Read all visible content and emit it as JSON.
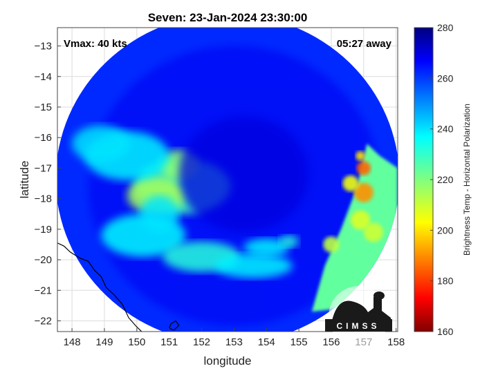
{
  "chart_data": {
    "type": "heatmap",
    "title": "Seven: 23-Jan-2024 23:30:00",
    "xlabel": "longitude",
    "ylabel": "latitude",
    "xlim": [
      147.55,
      158.05
    ],
    "ylim": [
      -22.35,
      -12.4
    ],
    "xticks": [
      148,
      149,
      150,
      151,
      152,
      153,
      154,
      155,
      156,
      157,
      158
    ],
    "yticks": [
      -13,
      -14,
      -15,
      -16,
      -17,
      -18,
      -19,
      -20,
      -21,
      -22
    ],
    "grid": true,
    "annotations": {
      "top_left": "Vmax: 40 kts",
      "top_right": "05:27 away"
    },
    "colorbar": {
      "label": "Brightness Temp - Horizontal Polarization",
      "range": [
        160,
        280
      ],
      "ticks": [
        160,
        180,
        200,
        220,
        240,
        260,
        280
      ],
      "colormap": "jet"
    },
    "swath": {
      "center_lon": 152.8,
      "center_lat": -17.35,
      "radius_lon": 5.3,
      "radius_lat": 5.4
    },
    "coastline": [
      [
        147.55,
        -19.45
      ],
      [
        147.75,
        -19.55
      ],
      [
        147.95,
        -19.75
      ],
      [
        148.25,
        -19.95
      ],
      [
        148.5,
        -20.05
      ],
      [
        148.7,
        -20.35
      ],
      [
        148.9,
        -20.55
      ],
      [
        149.05,
        -20.9
      ],
      [
        149.3,
        -21.15
      ],
      [
        149.55,
        -21.45
      ],
      [
        149.75,
        -21.9
      ],
      [
        150.0,
        -22.2
      ],
      [
        150.15,
        -22.35
      ]
    ],
    "islands": [
      [
        [
          151.05,
          -22.1
        ],
        [
          151.2,
          -22.0
        ],
        [
          151.3,
          -22.15
        ],
        [
          151.15,
          -22.3
        ],
        [
          151.0,
          -22.25
        ],
        [
          151.05,
          -22.1
        ]
      ]
    ],
    "warm_features": [
      {
        "lon": 151.4,
        "lat": -17.6,
        "rlon": 1.5,
        "rlat": 0.9,
        "temp": 228
      },
      {
        "lon": 150.6,
        "lat": -17.9,
        "rlon": 0.9,
        "rlat": 0.6,
        "temp": 215
      },
      {
        "lon": 151.3,
        "lat": -16.9,
        "rlon": 0.6,
        "rlat": 0.5,
        "temp": 218
      },
      {
        "lon": 149.7,
        "lat": -16.6,
        "rlon": 1.3,
        "rlat": 0.8,
        "temp": 238
      },
      {
        "lon": 148.9,
        "lat": -16.2,
        "rlon": 0.9,
        "rlat": 0.6,
        "temp": 240
      },
      {
        "lon": 150.2,
        "lat": -19.2,
        "rlon": 1.3,
        "rlat": 0.7,
        "temp": 237
      },
      {
        "lon": 152.0,
        "lat": -19.9,
        "rlon": 1.2,
        "rlat": 0.5,
        "temp": 232
      },
      {
        "lon": 153.6,
        "lat": -20.2,
        "rlon": 1.2,
        "rlat": 0.4,
        "temp": 238
      },
      {
        "lon": 154.0,
        "lat": -19.6,
        "rlon": 0.7,
        "rlat": 0.3,
        "temp": 238
      },
      {
        "lon": 154.7,
        "lat": -19.4,
        "rlon": 0.3,
        "rlat": 0.2,
        "temp": 232
      },
      {
        "lon": 150.7,
        "lat": -18.5,
        "rlon": 0.6,
        "rlat": 0.6,
        "temp": 240
      }
    ],
    "land_strip": {
      "polygon": [
        [
          157.1,
          -16.2
        ],
        [
          157.5,
          -16.6
        ],
        [
          158.05,
          -17.0
        ],
        [
          158.05,
          -20.5
        ],
        [
          157.5,
          -21.0
        ],
        [
          156.8,
          -21.4
        ],
        [
          156.2,
          -21.6
        ],
        [
          155.4,
          -21.7
        ],
        [
          155.8,
          -20.2
        ],
        [
          156.3,
          -19.0
        ],
        [
          156.8,
          -17.6
        ]
      ],
      "temp": 224,
      "hot_spots": [
        {
          "lon": 157.0,
          "lat": -17.0,
          "r": 0.22,
          "temp": 185
        },
        {
          "lon": 157.0,
          "lat": -17.8,
          "r": 0.3,
          "temp": 190
        },
        {
          "lon": 156.6,
          "lat": -17.5,
          "r": 0.25,
          "temp": 205
        },
        {
          "lon": 156.9,
          "lat": -18.7,
          "r": 0.3,
          "temp": 208
        },
        {
          "lon": 156.0,
          "lat": -19.5,
          "r": 0.25,
          "temp": 212
        },
        {
          "lon": 156.9,
          "lat": -16.6,
          "r": 0.15,
          "temp": 200
        },
        {
          "lon": 157.3,
          "lat": -19.1,
          "r": 0.3,
          "temp": 210
        }
      ]
    },
    "eye": {
      "lon": 153.3,
      "lat": -17.2,
      "rlon": 2.0,
      "rlat": 1.9,
      "temp": 270
    }
  },
  "logo": {
    "text": "CIMSS"
  }
}
